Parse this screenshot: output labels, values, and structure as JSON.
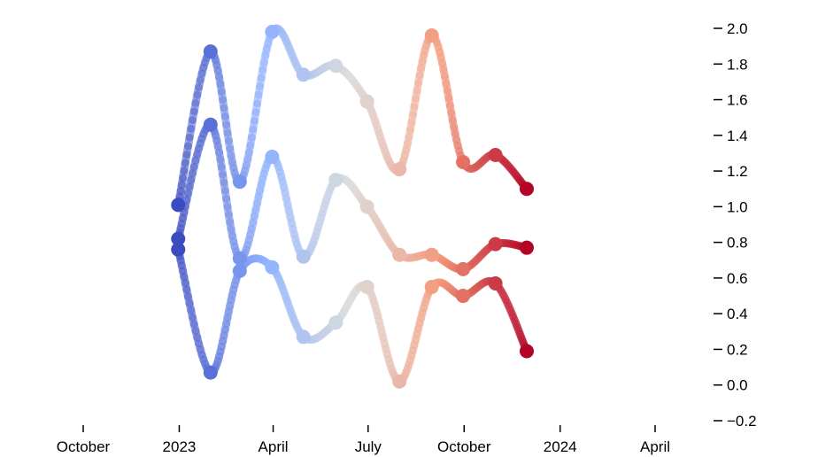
{
  "chart_data": {
    "type": "line",
    "x_axis": {
      "type": "date",
      "range": [
        "2022-09-20",
        "2024-05-15"
      ],
      "ticks": [
        {
          "date": "2022-10-01",
          "label": "October"
        },
        {
          "date": "2023-01-01",
          "label": "2023"
        },
        {
          "date": "2023-04-01",
          "label": "April"
        },
        {
          "date": "2023-07-01",
          "label": "July"
        },
        {
          "date": "2023-10-01",
          "label": "October"
        },
        {
          "date": "2024-01-01",
          "label": "2024"
        },
        {
          "date": "2024-04-01",
          "label": "April"
        }
      ]
    },
    "y_axis": {
      "position": "right",
      "range": [
        -0.25,
        2.05
      ],
      "ticks": [
        {
          "value": 2.0,
          "label": "2.0"
        },
        {
          "value": 1.8,
          "label": "1.8"
        },
        {
          "value": 1.6,
          "label": "1.6"
        },
        {
          "value": 1.4,
          "label": "1.4"
        },
        {
          "value": 1.2,
          "label": "1.2"
        },
        {
          "value": 1.0,
          "label": "1.0"
        },
        {
          "value": 0.8,
          "label": "0.8"
        },
        {
          "value": 0.6,
          "label": "0.6"
        },
        {
          "value": 0.4,
          "label": "0.4"
        },
        {
          "value": 0.2,
          "label": "0.2"
        },
        {
          "value": 0.0,
          "label": "0.0"
        },
        {
          "value": -0.2,
          "label": "−0.2"
        }
      ]
    },
    "grid": false,
    "curve": "smooth",
    "colormap": "coolwarm",
    "colormap_stops": [
      "#3b4cc0",
      "#8db0fe",
      "#dddddd",
      "#f49a7b",
      "#b40426"
    ],
    "x": [
      "2022-12-31",
      "2023-01-31",
      "2023-02-28",
      "2023-03-31",
      "2023-04-30",
      "2023-05-31",
      "2023-06-30",
      "2023-07-31",
      "2023-08-31",
      "2023-09-30",
      "2023-10-31",
      "2023-11-30"
    ],
    "series": [
      {
        "values": [
          1.01,
          1.87,
          1.14,
          1.98,
          1.74,
          1.79,
          1.59,
          1.21,
          1.96,
          1.25,
          1.29,
          1.1
        ]
      },
      {
        "values": [
          0.82,
          1.46,
          0.71,
          1.28,
          0.72,
          1.15,
          1.0,
          0.73,
          0.73,
          0.65,
          0.79,
          0.77
        ]
      },
      {
        "values": [
          0.76,
          0.07,
          0.64,
          0.66,
          0.27,
          0.35,
          0.55,
          0.02,
          0.55,
          0.5,
          0.57,
          0.19
        ]
      }
    ]
  }
}
